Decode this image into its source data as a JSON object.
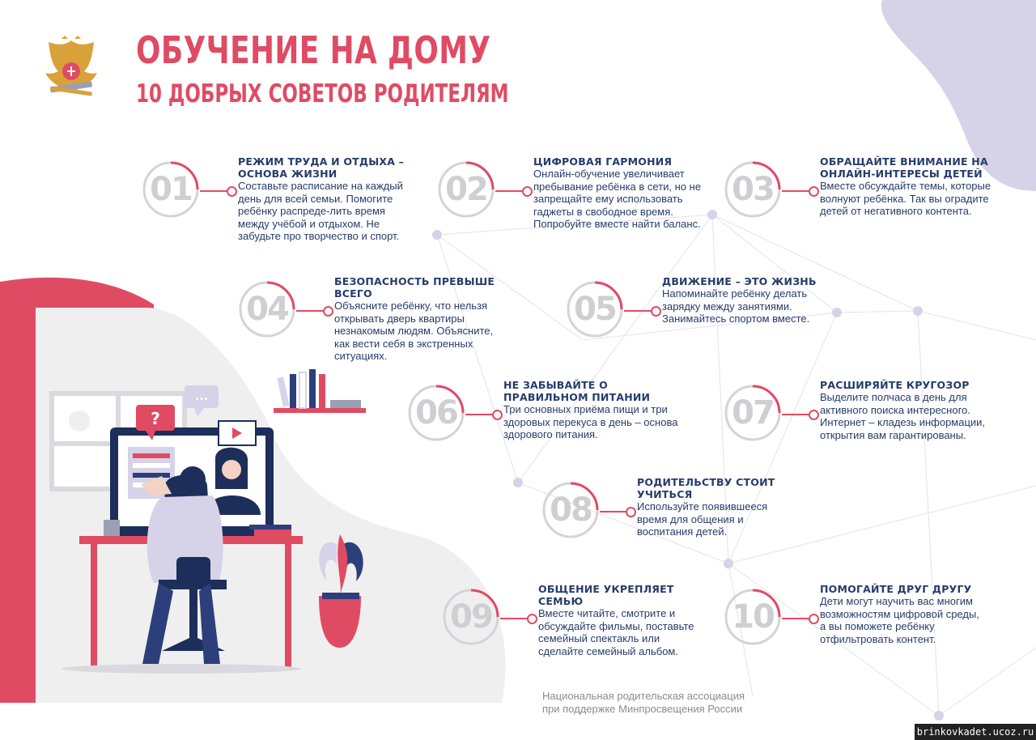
{
  "header": {
    "title": "ОБУЧЕНИЕ НА ДОМУ",
    "subtitle": "10 ДОБРЫХ СОВЕТОВ РОДИТЕЛЯМ",
    "emblem": "ministry-coat-of-arms"
  },
  "tips": [
    {
      "number": "01",
      "title": "РЕЖИМ ТРУДА И ОТДЫХА – ОСНОВА ЖИЗНИ",
      "text": "Составьте расписание на каждый день для всей семьи. Помогите ребёнку распреде-лить время между учёбой и отдыхом. Не забудьте про творчество и спорт."
    },
    {
      "number": "02",
      "title": "ЦИФРОВАЯ ГАРМОНИЯ",
      "text": "Онлайн-обучение увеличивает пребывание ребёнка в сети, но не запрещайте ему использовать гаджеты в свободное время. Попробуйте вместе найти баланс."
    },
    {
      "number": "03",
      "title": "ОБРАЩАЙТЕ ВНИМАНИЕ НА ОНЛАЙН-ИНТЕРЕСЫ ДЕТЕЙ",
      "text": "Вместе обсуждайте темы, которые волнуют ребёнка. Так вы оградите детей от негативного контента."
    },
    {
      "number": "04",
      "title": "БЕЗОПАСНОСТЬ ПРЕВЫШЕ ВСЕГО",
      "text": "Объясните ребёнку, что нельзя открывать дверь квартиры незнакомым людям. Объясните, как вести себя в экстренных ситуациях."
    },
    {
      "number": "05",
      "title": "ДВИЖЕНИЕ – ЭТО ЖИЗНЬ",
      "text": "Напоминайте ребёнку делать зарядку между занятиями. Занимайтесь спортом вместе."
    },
    {
      "number": "06",
      "title": "НЕ ЗАБЫВАЙТЕ О ПРАВИЛЬНОМ ПИТАНИИ",
      "text": "Три основных приёма пищи и три здоровых перекуса в день – основа здорового питания."
    },
    {
      "number": "07",
      "title": "РАСШИРЯЙТЕ КРУГОЗОР",
      "text": "Выделите полчаса в день для активного поиска интересного. Интернет – кладезь информации, открытия вам гарантированы."
    },
    {
      "number": "08",
      "title": "РОДИТЕЛЬСТВУ СТОИТ УЧИТЬСЯ",
      "text": "Используйте появившееся время для общения и воспитания детей."
    },
    {
      "number": "09",
      "title": "ОБЩЕНИЕ УКРЕПЛЯЕТ СЕМЬЮ",
      "text": "Вместе читайте, смотрите и обсуждайте фильмы, поставьте семейный спектакль или сделайте семейный альбом."
    },
    {
      "number": "10",
      "title": "ПОМОГАЙТЕ ДРУГ ДРУГУ",
      "text": "Дети могут научить вас многим возможностям цифровой среды, а вы поможете ребёнку отфильтровать контент."
    }
  ],
  "footer": {
    "line1": "Национальная родительская ассоциация",
    "line2": "при поддержке Минпросвещения России"
  },
  "watermark": "brinkovkadet.ucoz.ru",
  "colors": {
    "accent": "#e04b64",
    "navy": "#263c6b",
    "lavender": "#d6d3e8",
    "gray": "#efefef",
    "number": "#cfcfd3"
  },
  "illustration": "parent-and-child-at-computer"
}
